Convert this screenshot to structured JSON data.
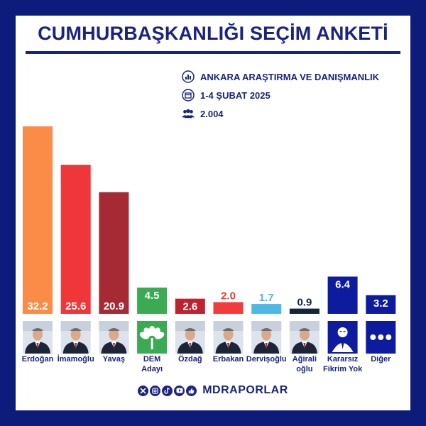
{
  "header": {
    "title": "CUMHURBAŞKANLIĞI SEÇİM ANKETİ"
  },
  "meta": {
    "company": "ANKARA ARAŞTIRMA VE DANIŞMANLIK",
    "date": "1-4 ŞUBAT 2025",
    "sample": "2.004"
  },
  "footer": {
    "brand": "MDRAPORLAR"
  },
  "colors": {
    "frame": "#0d1b7a",
    "title": "#1a237e"
  },
  "chart_data": {
    "type": "bar",
    "title": "CUMHURBAŞKANLIĞI SEÇİM ANKETİ",
    "xlabel": "",
    "ylabel": "",
    "ylim": [
      0,
      35
    ],
    "grid": false,
    "categories": [
      {
        "name": "Erdoğan",
        "lines": [
          "Erdoğan"
        ]
      },
      {
        "name": "İmamoğlu",
        "lines": [
          "İmamoğlu"
        ]
      },
      {
        "name": "Yavaş",
        "lines": [
          "Yavaş"
        ]
      },
      {
        "name": "DEM Adayı",
        "lines": [
          "DEM",
          "Adayı"
        ]
      },
      {
        "name": "Özdağ",
        "lines": [
          "Özdağ"
        ]
      },
      {
        "name": "Erbakan",
        "lines": [
          "Erbakan"
        ]
      },
      {
        "name": "Dervişoğlu",
        "lines": [
          "Dervişoğlu"
        ]
      },
      {
        "name": "Ağıralioğlu",
        "lines": [
          "Ağirali",
          "oğlu"
        ]
      },
      {
        "name": "Kararsız Fikrim Yok",
        "lines": [
          "Kararsız",
          "Fikrim Yok"
        ]
      },
      {
        "name": "Diğer",
        "lines": [
          "Diğer"
        ]
      }
    ],
    "values": [
      32.2,
      25.6,
      20.9,
      4.5,
      2.6,
      2.0,
      1.7,
      0.9,
      6.4,
      3.2
    ],
    "value_labels": [
      "32.2",
      "25.6",
      "20.9",
      "4.5",
      "2.6",
      "2.0",
      "1.7",
      "0.9",
      "6.4",
      "3.2"
    ],
    "colors": [
      "#fb8c48",
      "#ef3638",
      "#a52a34",
      "#3aab52",
      "#bf2130",
      "#f23b3b",
      "#4cb8e6",
      "#13243f",
      "#0d1b9e",
      "#0d1b9e"
    ],
    "label_inside": [
      true,
      true,
      true,
      false,
      false,
      false,
      false,
      false,
      false,
      false
    ],
    "label_colors": [
      "#ffffff",
      "#ffffff",
      "#ffffff",
      "#ffffff",
      "#ffffff",
      "#e53935",
      "#4cb8e6",
      "#13243f",
      "#ffffff",
      "#ffffff"
    ],
    "icons": [
      "person-photo",
      "person-photo",
      "person-photo",
      "dem-logo",
      "person-photo",
      "person-photo",
      "person-photo",
      "person-photo",
      "anonymous-icon",
      "more-dots-icon"
    ]
  }
}
